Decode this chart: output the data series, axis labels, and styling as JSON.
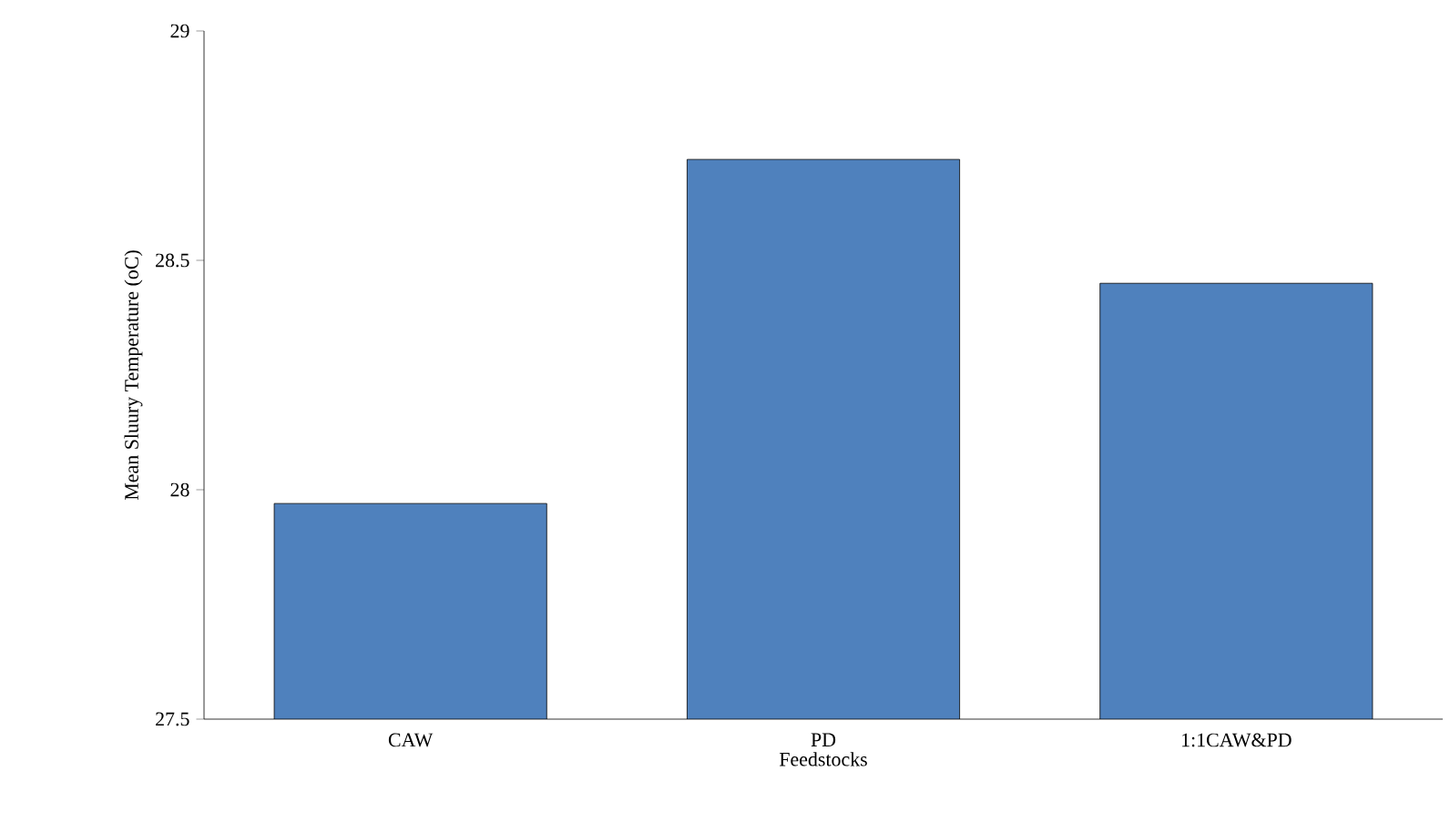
{
  "chart_data": {
    "type": "bar",
    "xlabel": "Feedstocks",
    "ylabel": "Mean Sluury Temperature (oC)",
    "categories": [
      "CAW",
      "PD",
      "1:1CAW&PD"
    ],
    "values": [
      27.97,
      28.72,
      28.45
    ],
    "color": "#4f81bd",
    "ylim": [
      27.5,
      29
    ],
    "yticks": [
      27.5,
      28,
      28.5,
      29
    ],
    "grid": false
  }
}
